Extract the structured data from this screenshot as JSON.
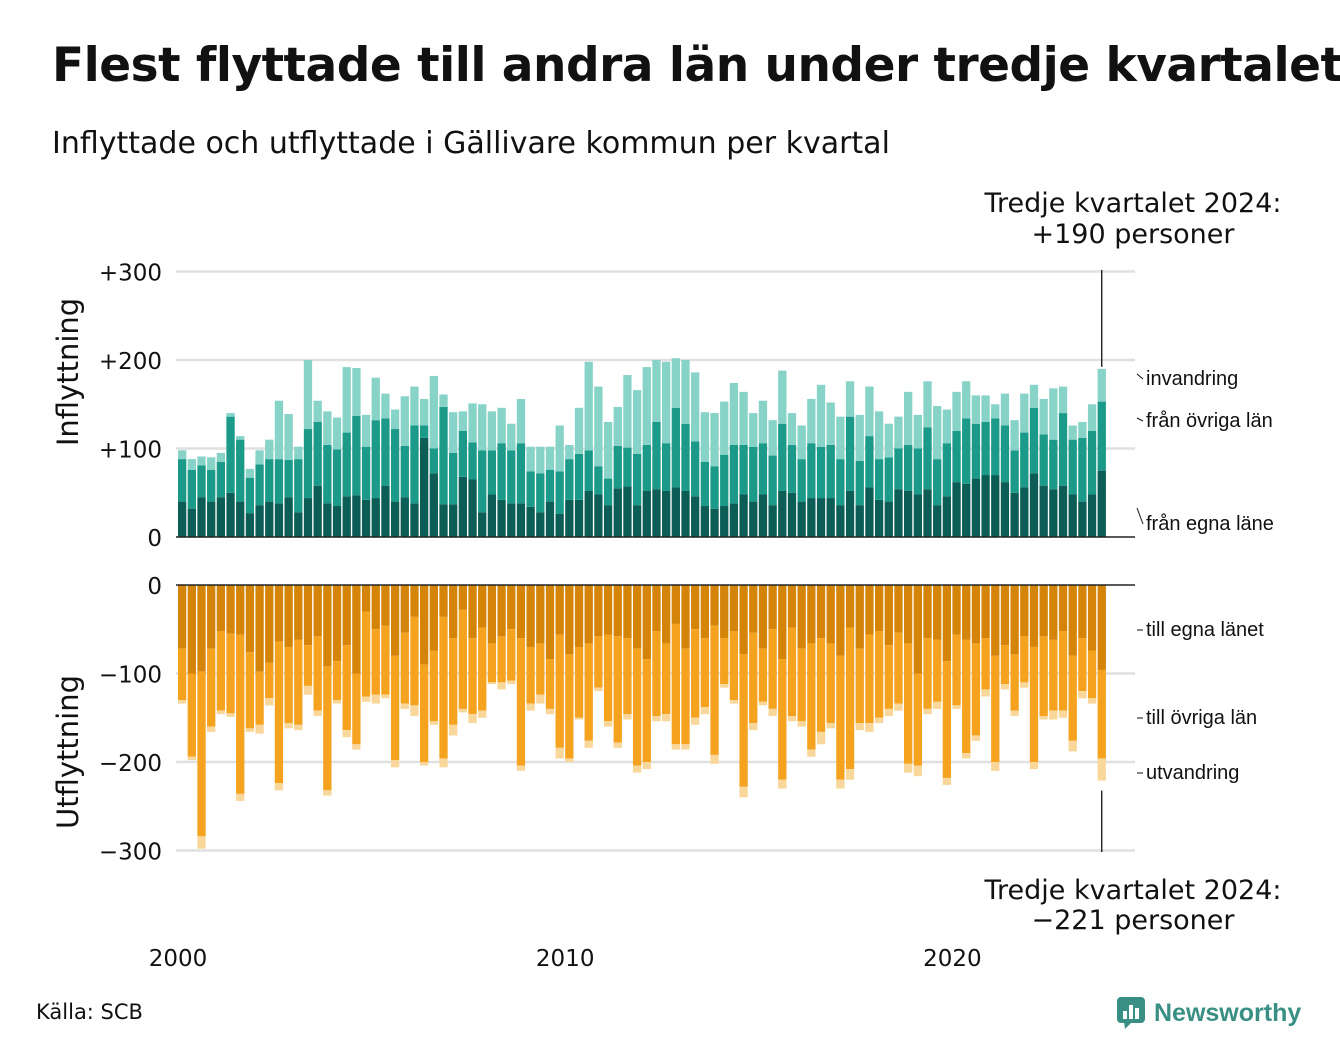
{
  "title": "Flest flyttade till andra län under tredje kvartalet",
  "subtitle": "Inflyttade och utflyttade i Gällivare kommun per kvartal",
  "source": "Källa: SCB",
  "logo": {
    "text": "Newsworthy",
    "icon": "newsworthy-logo-icon",
    "color": "#3a8f84"
  },
  "annotations": {
    "top": [
      "Tredje kvartalet 2024:",
      "+190 personer"
    ],
    "bottom": [
      "Tredje kvartalet 2024:",
      "−221 personer"
    ]
  },
  "colors": {
    "in_local": "#0b5d55",
    "in_other": "#1b9a8a",
    "in_immigration": "#87d3c8",
    "out_local": "#d48408",
    "out_other": "#f5a21f",
    "out_emigration": "#f9d79a",
    "grid": "#e0e0e0",
    "axis": "#222222"
  },
  "chart_data": [
    {
      "type": "bar",
      "stacked": true,
      "ylabel": "Inflyttning",
      "ylim": [
        0,
        300
      ],
      "yticks": [
        0,
        100,
        200,
        300
      ],
      "ytick_labels": [
        "0",
        "+100",
        "+200",
        "+300"
      ],
      "x_start": 2000.0,
      "x_step": 0.25,
      "xticks": [
        "2000",
        "2010",
        "2020"
      ],
      "series": [
        {
          "name": "från egna läne",
          "values": [
            40,
            32,
            45,
            40,
            45,
            50,
            40,
            27,
            36,
            40,
            38,
            45,
            28,
            44,
            58,
            38,
            35,
            46,
            47,
            42,
            44,
            58,
            40,
            45,
            38,
            112,
            72,
            37,
            37,
            68,
            65,
            28,
            48,
            42,
            38,
            38,
            34,
            28,
            40,
            26,
            42,
            42,
            52,
            48,
            36,
            55,
            57,
            36,
            52,
            54,
            52,
            56,
            52,
            46,
            35,
            32,
            35,
            38,
            48,
            40,
            48,
            36,
            52,
            50,
            40,
            44,
            44,
            44,
            36,
            52,
            36,
            56,
            42,
            40,
            54,
            52,
            48,
            54,
            36,
            46,
            62,
            60,
            66,
            70,
            70,
            62,
            50,
            56,
            72,
            58,
            54,
            58,
            48,
            40,
            48,
            75
          ]
        },
        {
          "name": "från övriga län",
          "values": [
            48,
            44,
            36,
            36,
            40,
            86,
            70,
            40,
            46,
            48,
            50,
            42,
            60,
            78,
            72,
            66,
            64,
            72,
            90,
            60,
            88,
            76,
            82,
            58,
            88,
            14,
            28,
            110,
            58,
            52,
            42,
            70,
            50,
            64,
            60,
            68,
            40,
            44,
            36,
            48,
            46,
            52,
            46,
            32,
            30,
            48,
            44,
            58,
            52,
            76,
            54,
            90,
            76,
            62,
            50,
            48,
            58,
            66,
            56,
            62,
            58,
            56,
            76,
            54,
            48,
            62,
            58,
            60,
            52,
            84,
            50,
            58,
            46,
            50,
            46,
            52,
            52,
            70,
            52,
            60,
            58,
            74,
            62,
            60,
            64,
            64,
            48,
            62,
            74,
            58,
            56,
            82,
            62,
            72,
            72,
            78
          ]
        },
        {
          "name": "invandring",
          "values": [
            10,
            12,
            10,
            14,
            10,
            4,
            4,
            10,
            16,
            22,
            66,
            52,
            14,
            78,
            24,
            38,
            36,
            74,
            54,
            36,
            48,
            28,
            22,
            56,
            44,
            30,
            82,
            14,
            46,
            22,
            44,
            52,
            44,
            40,
            30,
            50,
            28,
            30,
            26,
            52,
            16,
            52,
            100,
            90,
            64,
            44,
            82,
            72,
            88,
            70,
            92,
            56,
            72,
            78,
            56,
            60,
            60,
            70,
            60,
            38,
            48,
            40,
            60,
            36,
            38,
            50,
            70,
            48,
            48,
            40,
            52,
            56,
            54,
            38,
            36,
            60,
            38,
            52,
            60,
            38,
            44,
            42,
            32,
            30,
            16,
            36,
            34,
            44,
            26,
            40,
            58,
            30,
            16,
            18,
            30,
            37
          ]
        }
      ]
    },
    {
      "type": "bar",
      "stacked": true,
      "ylabel": "Utflyttning",
      "ylim": [
        -300,
        0
      ],
      "yticks": [
        0,
        -100,
        -200,
        -300
      ],
      "ytick_labels": [
        "0",
        "−100",
        "−200",
        "−300"
      ],
      "x_start": 2000.0,
      "x_step": 0.25,
      "xticks": [
        "2000",
        "2010",
        "2020"
      ],
      "series": [
        {
          "name": "till egna länet",
          "values": [
            -72,
            -100,
            -98,
            -72,
            -52,
            -55,
            -56,
            -76,
            -98,
            -88,
            -64,
            -70,
            -62,
            -68,
            -58,
            -92,
            -86,
            -68,
            -100,
            -30,
            -50,
            -46,
            -80,
            -54,
            -36,
            -90,
            -74,
            -36,
            -60,
            -28,
            -60,
            -48,
            -66,
            -58,
            -50,
            -60,
            -70,
            -66,
            -84,
            -56,
            -78,
            -70,
            -66,
            -58,
            -56,
            -58,
            -60,
            -72,
            -84,
            -52,
            -66,
            -44,
            -72,
            -50,
            -60,
            -46,
            -60,
            -52,
            -78,
            -54,
            -72,
            -50,
            -84,
            -48,
            -72,
            -66,
            -60,
            -66,
            -80,
            -48,
            -72,
            -56,
            -52,
            -68,
            -54,
            -66,
            -100,
            -60,
            -62,
            -86,
            -56,
            -62,
            -66,
            -60,
            -80,
            -68,
            -78,
            -58,
            -70,
            -58,
            -62,
            -52,
            -80,
            -60,
            -74,
            -96
          ]
        },
        {
          "name": "till övriga län",
          "values": [
            -58,
            -94,
            -186,
            -88,
            -90,
            -90,
            -180,
            -86,
            -60,
            -40,
            -160,
            -86,
            -96,
            -46,
            -84,
            -140,
            -44,
            -96,
            -80,
            -96,
            -74,
            -78,
            -118,
            -80,
            -100,
            -110,
            -80,
            -160,
            -98,
            -112,
            -86,
            -94,
            -44,
            -52,
            -58,
            -144,
            -64,
            -58,
            -56,
            -128,
            -118,
            -80,
            -110,
            -58,
            -98,
            -120,
            -86,
            -132,
            -116,
            -96,
            -80,
            -136,
            -108,
            -100,
            -78,
            -146,
            -52,
            -78,
            -150,
            -102,
            -60,
            -90,
            -136,
            -100,
            -82,
            -120,
            -106,
            -90,
            -140,
            -160,
            -84,
            -100,
            -98,
            -72,
            -80,
            -136,
            -104,
            -80,
            -70,
            -132,
            -80,
            -128,
            -104,
            -58,
            -120,
            -44,
            -64,
            -52,
            -130,
            -90,
            -80,
            -90,
            -96,
            -60,
            -54,
            -100
          ]
        },
        {
          "name": "utvandring",
          "values": [
            -4,
            -4,
            -14,
            -6,
            -4,
            -4,
            -8,
            -4,
            -10,
            -8,
            -8,
            -6,
            -6,
            -10,
            -6,
            -6,
            -4,
            -8,
            -6,
            -6,
            -10,
            -4,
            -8,
            -6,
            -12,
            -4,
            -4,
            -10,
            -12,
            -4,
            -10,
            -8,
            -2,
            -8,
            -4,
            -6,
            -8,
            -10,
            -6,
            -12,
            -4,
            -2,
            -8,
            -4,
            -6,
            -6,
            -6,
            -8,
            -8,
            -6,
            -8,
            -6,
            -6,
            -8,
            -8,
            -10,
            -4,
            -4,
            -12,
            -8,
            -4,
            -8,
            -10,
            -6,
            -6,
            -8,
            -14,
            -6,
            -10,
            -12,
            -8,
            -10,
            -6,
            -8,
            -8,
            -10,
            -12,
            -6,
            -8,
            -8,
            -4,
            -6,
            -6,
            -8,
            -10,
            -6,
            -6,
            -6,
            -8,
            -4,
            -10,
            -8,
            -12,
            -8,
            -6,
            -25
          ]
        }
      ]
    }
  ]
}
